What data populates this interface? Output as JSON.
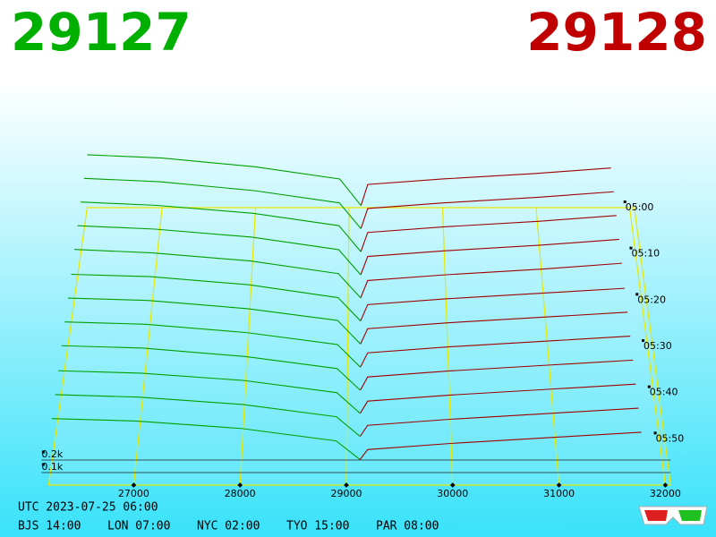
{
  "header": {
    "bid": 29127,
    "ask": 29128
  },
  "chart_data": {
    "type": "depth-waterfall",
    "xlim": [
      26200,
      32050
    ],
    "xticks": [
      27000,
      28000,
      29000,
      30000,
      31000,
      32000
    ],
    "tlim": [
      0,
      60
    ],
    "time_ticks": [
      {
        "value": 0,
        "label": "05:00"
      },
      {
        "value": 10,
        "label": "05:10"
      },
      {
        "value": 20,
        "label": "05:20"
      },
      {
        "value": 30,
        "label": "05:30"
      },
      {
        "value": 40,
        "label": "05:40"
      },
      {
        "value": 50,
        "label": "05:50"
      }
    ],
    "depth_ticks": [
      {
        "value": 0.2,
        "label": "0.2k"
      },
      {
        "value": 0.1,
        "label": "0.1k"
      }
    ],
    "bid_color": "#00a000",
    "ask_color": "#a00000",
    "bid_prices": [
      26200,
      27000,
      28000,
      28900,
      29127
    ],
    "ask_prices": [
      29128,
      29200,
      30000,
      31000,
      31800
    ],
    "snapshots": [
      {
        "minute": 0,
        "bids": [
          0.48,
          0.45,
          0.37,
          0.26,
          0.02
        ],
        "asks": [
          0.02,
          0.21,
          0.26,
          0.31,
          0.36
        ]
      },
      {
        "minute": 5,
        "bids": [
          0.47,
          0.44,
          0.36,
          0.25,
          0.02
        ],
        "asks": [
          0.02,
          0.2,
          0.25,
          0.3,
          0.35
        ]
      },
      {
        "minute": 10,
        "bids": [
          0.46,
          0.43,
          0.36,
          0.25,
          0.02
        ],
        "asks": [
          0.02,
          0.19,
          0.24,
          0.29,
          0.34
        ]
      },
      {
        "minute": 15,
        "bids": [
          0.45,
          0.42,
          0.35,
          0.24,
          0.02
        ],
        "asks": [
          0.02,
          0.18,
          0.23,
          0.28,
          0.33
        ]
      },
      {
        "minute": 20,
        "bids": [
          0.44,
          0.41,
          0.34,
          0.23,
          0.02
        ],
        "asks": [
          0.02,
          0.17,
          0.22,
          0.27,
          0.32
        ]
      },
      {
        "minute": 25,
        "bids": [
          0.42,
          0.4,
          0.33,
          0.22,
          0.02
        ],
        "asks": [
          0.02,
          0.16,
          0.21,
          0.26,
          0.3
        ]
      },
      {
        "minute": 30,
        "bids": [
          0.41,
          0.39,
          0.32,
          0.22,
          0.02
        ],
        "asks": [
          0.02,
          0.15,
          0.2,
          0.25,
          0.29
        ]
      },
      {
        "minute": 35,
        "bids": [
          0.4,
          0.38,
          0.31,
          0.21,
          0.02
        ],
        "asks": [
          0.02,
          0.14,
          0.19,
          0.24,
          0.28
        ]
      },
      {
        "minute": 40,
        "bids": [
          0.39,
          0.37,
          0.3,
          0.2,
          0.02
        ],
        "asks": [
          0.02,
          0.13,
          0.18,
          0.23,
          0.27
        ]
      },
      {
        "minute": 45,
        "bids": [
          0.37,
          0.35,
          0.29,
          0.19,
          0.02
        ],
        "asks": [
          0.02,
          0.12,
          0.17,
          0.22,
          0.26
        ]
      },
      {
        "minute": 50,
        "bids": [
          0.36,
          0.34,
          0.28,
          0.18,
          0.02
        ],
        "asks": [
          0.02,
          0.11,
          0.16,
          0.21,
          0.25
        ]
      },
      {
        "minute": 55,
        "bids": [
          0.35,
          0.33,
          0.27,
          0.17,
          0.02
        ],
        "asks": [
          0.02,
          0.1,
          0.15,
          0.2,
          0.24
        ]
      }
    ]
  },
  "footer": {
    "utc": "UTC 2023-07-25 06:00",
    "zones": [
      "BJS 14:00",
      "LON 07:00",
      "NYC 02:00",
      "TYO 15:00",
      "PAR 08:00"
    ]
  }
}
